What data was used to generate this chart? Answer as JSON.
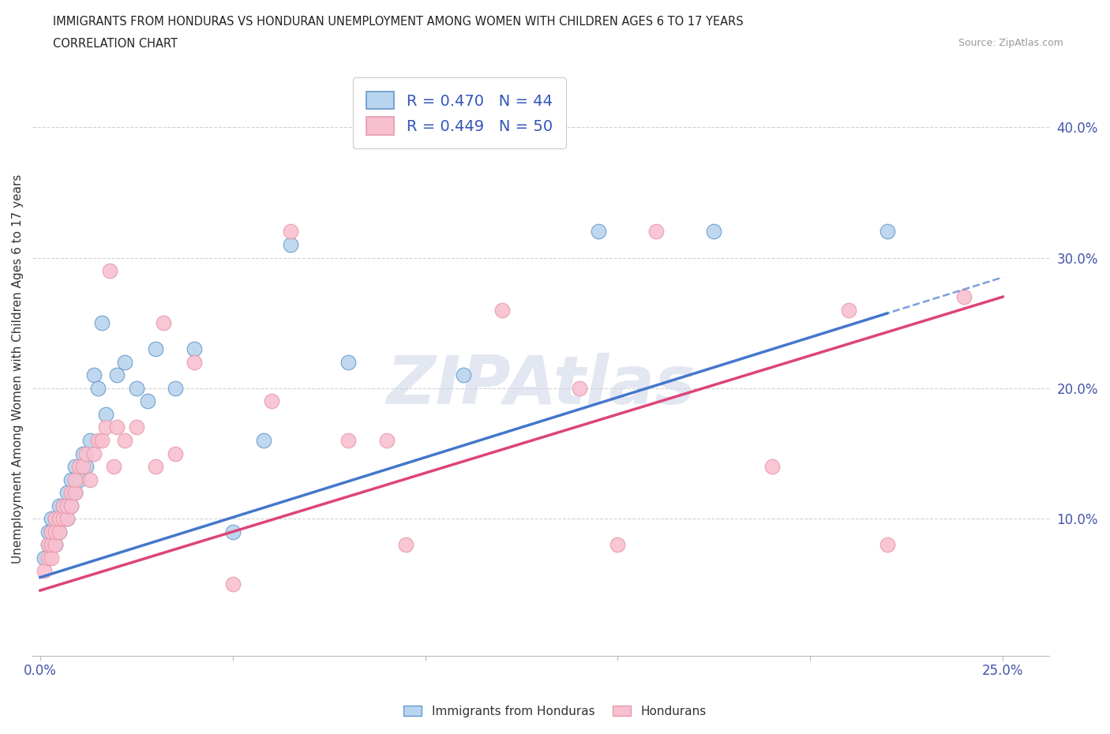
{
  "title": "IMMIGRANTS FROM HONDURAS VS HONDURAN UNEMPLOYMENT AMONG WOMEN WITH CHILDREN AGES 6 TO 17 YEARS",
  "subtitle": "CORRELATION CHART",
  "source": "Source: ZipAtlas.com",
  "ylabel": "Unemployment Among Women with Children Ages 6 to 17 years",
  "xlim": [
    -0.002,
    0.262
  ],
  "ylim": [
    -0.005,
    0.435
  ],
  "xticks": [
    0.0,
    0.05,
    0.1,
    0.15,
    0.2,
    0.25
  ],
  "xticklabels": [
    "0.0%",
    "",
    "",
    "",
    "",
    "25.0%"
  ],
  "yticks": [
    0.1,
    0.2,
    0.3,
    0.4
  ],
  "yticklabels": [
    "10.0%",
    "20.0%",
    "30.0%",
    "40.0%"
  ],
  "legend1_label": "R = 0.470   N = 44",
  "legend2_label": "R = 0.449   N = 50",
  "blue_face": "#b8d4ee",
  "blue_edge": "#6699cc",
  "pink_face": "#f8c0d0",
  "pink_edge": "#e899aa",
  "blue_line": "#4477cc",
  "pink_line": "#dd4477",
  "grid_color": "#cccccc",
  "watermark": "ZIPAtlas",
  "watermark_color": "#ccd4e8",
  "blue_scatter_x": [
    0.001,
    0.002,
    0.002,
    0.003,
    0.003,
    0.003,
    0.004,
    0.004,
    0.004,
    0.005,
    0.005,
    0.005,
    0.006,
    0.006,
    0.007,
    0.007,
    0.007,
    0.008,
    0.008,
    0.009,
    0.009,
    0.01,
    0.011,
    0.012,
    0.013,
    0.014,
    0.015,
    0.016,
    0.017,
    0.02,
    0.022,
    0.025,
    0.028,
    0.03,
    0.035,
    0.04,
    0.05,
    0.058,
    0.065,
    0.08,
    0.11,
    0.145,
    0.175,
    0.22
  ],
  "blue_scatter_y": [
    0.07,
    0.08,
    0.09,
    0.08,
    0.09,
    0.1,
    0.08,
    0.09,
    0.1,
    0.09,
    0.1,
    0.11,
    0.1,
    0.11,
    0.1,
    0.11,
    0.12,
    0.11,
    0.13,
    0.12,
    0.14,
    0.13,
    0.15,
    0.14,
    0.16,
    0.21,
    0.2,
    0.25,
    0.18,
    0.21,
    0.22,
    0.2,
    0.19,
    0.23,
    0.2,
    0.23,
    0.09,
    0.16,
    0.31,
    0.22,
    0.21,
    0.32,
    0.32,
    0.32
  ],
  "pink_scatter_x": [
    0.001,
    0.002,
    0.002,
    0.003,
    0.003,
    0.003,
    0.004,
    0.004,
    0.004,
    0.005,
    0.005,
    0.006,
    0.006,
    0.007,
    0.007,
    0.008,
    0.008,
    0.009,
    0.009,
    0.01,
    0.011,
    0.012,
    0.013,
    0.014,
    0.015,
    0.016,
    0.017,
    0.018,
    0.019,
    0.02,
    0.022,
    0.025,
    0.03,
    0.032,
    0.035,
    0.04,
    0.05,
    0.06,
    0.065,
    0.08,
    0.09,
    0.095,
    0.12,
    0.14,
    0.15,
    0.16,
    0.19,
    0.21,
    0.22,
    0.24
  ],
  "pink_scatter_y": [
    0.06,
    0.07,
    0.08,
    0.07,
    0.08,
    0.09,
    0.08,
    0.09,
    0.1,
    0.09,
    0.1,
    0.1,
    0.11,
    0.1,
    0.11,
    0.11,
    0.12,
    0.12,
    0.13,
    0.14,
    0.14,
    0.15,
    0.13,
    0.15,
    0.16,
    0.16,
    0.17,
    0.29,
    0.14,
    0.17,
    0.16,
    0.17,
    0.14,
    0.25,
    0.15,
    0.22,
    0.05,
    0.19,
    0.32,
    0.16,
    0.16,
    0.08,
    0.26,
    0.2,
    0.08,
    0.32,
    0.14,
    0.26,
    0.08,
    0.27
  ],
  "blue_line_x0": 0.0,
  "blue_line_y0": 0.055,
  "blue_line_x1": 0.25,
  "blue_line_y1": 0.285,
  "pink_line_x0": 0.0,
  "pink_line_y0": 0.045,
  "pink_line_x1": 0.25,
  "pink_line_y1": 0.27
}
